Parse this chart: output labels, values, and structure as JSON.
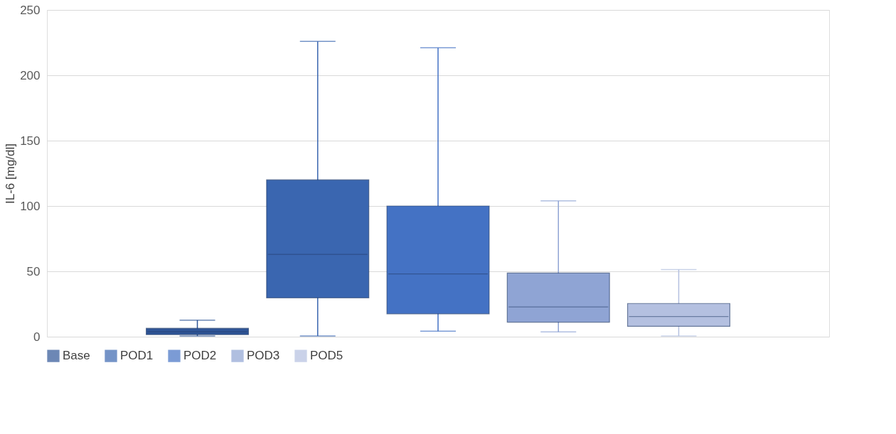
{
  "chart_data": {
    "type": "box",
    "ylabel": "IL-6 [mg/dl]",
    "categories": [
      null
    ],
    "ylim": [
      0,
      250
    ],
    "yticks": [
      0,
      50,
      100,
      150,
      200,
      250
    ],
    "grid": "y",
    "legend": "bottom",
    "series": [
      {
        "name": "Base",
        "color": "#2f5597",
        "boxes": [
          {
            "low": 0.5,
            "q1": 1.6,
            "median": 3.7,
            "q3": 6.4,
            "high": 12.7
          }
        ]
      },
      {
        "name": "POD1",
        "color": "#3a66b0",
        "boxes": [
          {
            "low": 0.5,
            "q1": 29.7,
            "median": 63,
            "q3": 120,
            "high": 226
          }
        ]
      },
      {
        "name": "POD2",
        "color": "#4472c4",
        "boxes": [
          {
            "low": 4.2,
            "q1": 17.5,
            "median": 48,
            "q3": 100,
            "high": 221
          }
        ]
      },
      {
        "name": "POD3",
        "color": "#8fa4d4",
        "boxes": [
          {
            "low": 3.7,
            "q1": 11.1,
            "median": 22.8,
            "q3": 48.7,
            "high": 104
          }
        ]
      },
      {
        "name": "POD5",
        "color": "#b4c0e0",
        "boxes": [
          {
            "low": 0.5,
            "q1": 7.9,
            "median": 15.4,
            "q3": 25.4,
            "high": 51.4
          }
        ]
      }
    ]
  }
}
